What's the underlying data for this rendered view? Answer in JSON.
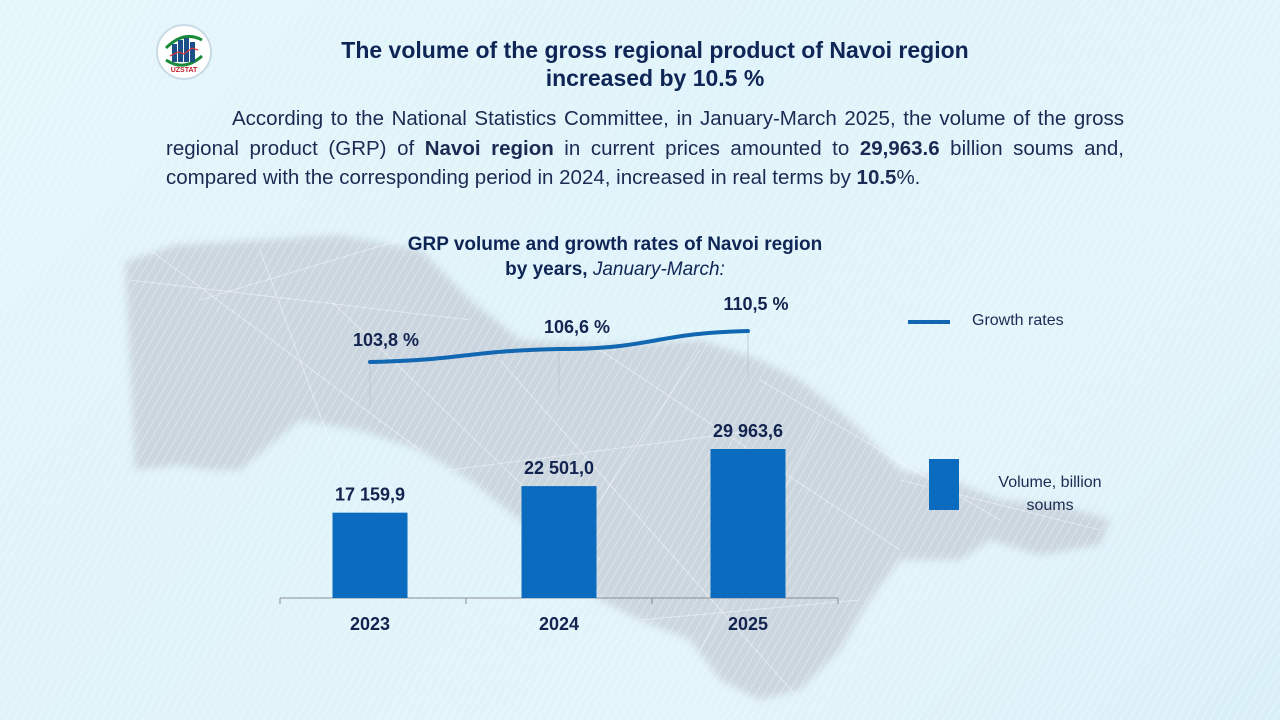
{
  "header": {
    "logo_text": "UZSTAT",
    "title_line1": "The volume of the gross regional product of Navoi region",
    "title_line2": "increased by 10.5 %"
  },
  "paragraph": {
    "p1": "According to the National Statistics Committee, in January-March 2025, the volume of the gross regional product (GRP) of ",
    "b1": "Navoi region",
    "p2": " in current prices amounted to ",
    "b2": "29,963.6",
    "p3": " billion soums and, compared with the corresponding period in 2024, increased in real terms by ",
    "b3": "10.5",
    "p4": "%."
  },
  "colors": {
    "bar": "#0a6bbf",
    "line": "#1167b1",
    "text_dark": "#0f2556"
  },
  "chart_data": {
    "type": "bar",
    "title": "GRP volume and growth rates of Navoi region",
    "subtitle_bold": "by years,",
    "subtitle_italic": "January-March:",
    "categories": [
      "2023",
      "2024",
      "2025"
    ],
    "series": [
      {
        "name": "Volume, billion soums",
        "kind": "bar",
        "values": [
          17159.9,
          22501.0,
          29963.6
        ],
        "labels": [
          "17 159,9",
          "22 501,0",
          "29 963,6"
        ]
      },
      {
        "name": "Growth rates",
        "kind": "line",
        "values": [
          103.8,
          106.6,
          110.5
        ],
        "labels": [
          "103,8 %",
          "106,6 %",
          "110,5 %"
        ]
      }
    ],
    "legend": [
      "Growth rates",
      "Volume, billion soums"
    ],
    "legend_position": "right",
    "grid": false,
    "xlabel": "",
    "ylabel": ""
  },
  "legend": {
    "line_label": "Growth rates",
    "bar_label_line1": "Volume, billion",
    "bar_label_line2": "soums"
  }
}
